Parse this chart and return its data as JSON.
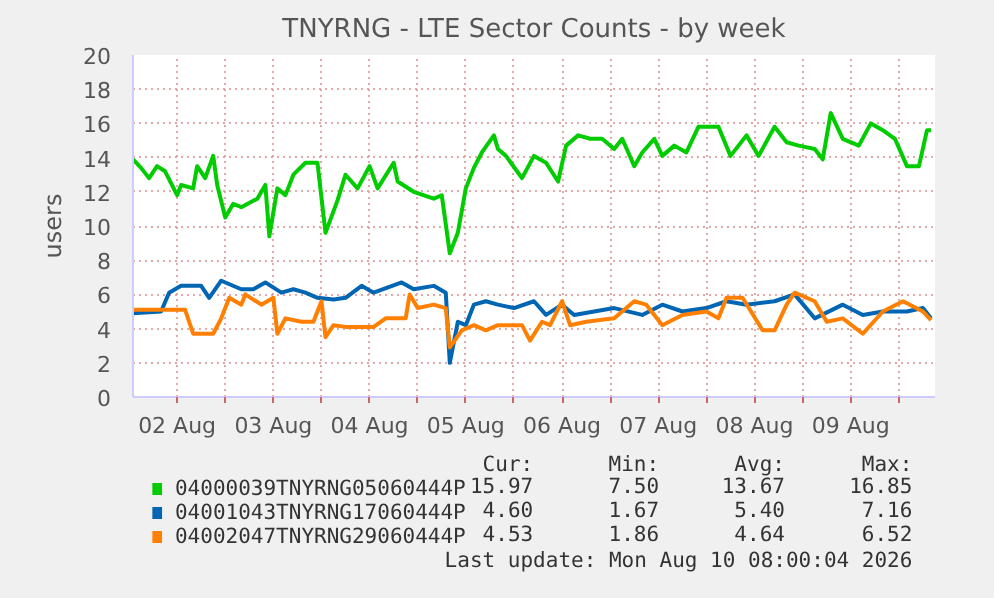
{
  "chart_data": {
    "type": "line",
    "title": "TNYRNG - LTE Sector Counts - by week",
    "ylabel": "users",
    "xlim": [
      "2026-08-02T01:00",
      "2026-08-10T09:00"
    ],
    "xticks": [
      {
        "value": "2026-08-02T12:00",
        "label": "02 Aug"
      },
      {
        "value": "2026-08-03T00:00",
        "label": null
      },
      {
        "value": "2026-08-03T12:00",
        "label": "03 Aug"
      },
      {
        "value": "2026-08-04T00:00",
        "label": null
      },
      {
        "value": "2026-08-04T12:00",
        "label": "04 Aug"
      },
      {
        "value": "2026-08-05T00:00",
        "label": null
      },
      {
        "value": "2026-08-05T12:00",
        "label": "05 Aug"
      },
      {
        "value": "2026-08-06T00:00",
        "label": null
      },
      {
        "value": "2026-08-06T12:00",
        "label": "06 Aug"
      },
      {
        "value": "2026-08-07T00:00",
        "label": null
      },
      {
        "value": "2026-08-07T12:00",
        "label": "07 Aug"
      },
      {
        "value": "2026-08-08T00:00",
        "label": null
      },
      {
        "value": "2026-08-08T12:00",
        "label": "08 Aug"
      },
      {
        "value": "2026-08-09T00:00",
        "label": null
      },
      {
        "value": "2026-08-09T12:00",
        "label": "09 Aug"
      },
      {
        "value": "2026-08-10T00:00",
        "label": null
      }
    ],
    "ylim": [
      0,
      20
    ],
    "yticks": [
      0,
      2,
      4,
      6,
      8,
      10,
      12,
      14,
      16,
      18,
      20
    ],
    "grid": true,
    "legend": "bottom",
    "series": [
      {
        "name": "04000039TNYRNG05060444P",
        "color": "#00cc00",
        "x": [
          "2026-08-02T01:00",
          "2026-08-02T03:00",
          "2026-08-02T05:00",
          "2026-08-02T07:00",
          "2026-08-02T09:00",
          "2026-08-02T12:00",
          "2026-08-02T13:00",
          "2026-08-02T16:00",
          "2026-08-02T17:00",
          "2026-08-02T19:00",
          "2026-08-02T21:00",
          "2026-08-02T22:00",
          "2026-08-03T00:00",
          "2026-08-03T02:00",
          "2026-08-03T04:00",
          "2026-08-03T08:00",
          "2026-08-03T10:00",
          "2026-08-03T11:00",
          "2026-08-03T13:00",
          "2026-08-03T15:00",
          "2026-08-03T17:00",
          "2026-08-03T20:00",
          "2026-08-03T23:00",
          "2026-08-04T01:00",
          "2026-08-04T04:00",
          "2026-08-04T06:00",
          "2026-08-04T09:00",
          "2026-08-04T12:00",
          "2026-08-04T14:00",
          "2026-08-04T18:00",
          "2026-08-04T19:00",
          "2026-08-04T23:00",
          "2026-08-05T04:00",
          "2026-08-05T06:00",
          "2026-08-05T08:00",
          "2026-08-05T10:00",
          "2026-08-05T12:00",
          "2026-08-05T14:00",
          "2026-08-05T16:00",
          "2026-08-05T19:00",
          "2026-08-05T20:00",
          "2026-08-05T22:00",
          "2026-08-06T02:00",
          "2026-08-06T05:00",
          "2026-08-06T08:00",
          "2026-08-06T11:00",
          "2026-08-06T13:00",
          "2026-08-06T16:00",
          "2026-08-06T19:00",
          "2026-08-06T22:00",
          "2026-08-07T01:00",
          "2026-08-07T03:00",
          "2026-08-07T06:00",
          "2026-08-07T08:00",
          "2026-08-07T11:00",
          "2026-08-07T13:00",
          "2026-08-07T16:00",
          "2026-08-07T19:00",
          "2026-08-07T22:00",
          "2026-08-08T03:00",
          "2026-08-08T06:00",
          "2026-08-08T10:00",
          "2026-08-08T13:00",
          "2026-08-08T17:00",
          "2026-08-08T20:00",
          "2026-08-08T23:00",
          "2026-08-09T03:00",
          "2026-08-09T05:00",
          "2026-08-09T07:00",
          "2026-08-09T10:00",
          "2026-08-09T14:00",
          "2026-08-09T17:00",
          "2026-08-09T20:00",
          "2026-08-09T23:00",
          "2026-08-10T02:00",
          "2026-08-10T05:00",
          "2026-08-10T07:00",
          "2026-08-10T08:00"
        ],
        "values": [
          13.9,
          13.4,
          12.8,
          13.5,
          13.2,
          11.8,
          12.4,
          12.2,
          13.5,
          12.8,
          14.1,
          12.4,
          10.5,
          11.3,
          11.1,
          11.6,
          12.4,
          9.4,
          12.2,
          11.8,
          13.0,
          13.7,
          13.7,
          9.6,
          11.5,
          13.0,
          12.2,
          13.5,
          12.2,
          13.7,
          12.6,
          12.0,
          11.6,
          11.8,
          8.4,
          9.6,
          12.2,
          13.4,
          14.3,
          15.3,
          14.5,
          14.1,
          12.8,
          14.1,
          13.7,
          12.6,
          14.7,
          15.3,
          15.1,
          15.1,
          14.5,
          15.1,
          13.5,
          14.3,
          15.1,
          14.1,
          14.7,
          14.3,
          15.8,
          15.8,
          14.1,
          15.3,
          14.1,
          15.8,
          14.9,
          14.7,
          14.5,
          13.9,
          16.6,
          15.1,
          14.7,
          16.0,
          15.6,
          15.1,
          13.5,
          13.5,
          15.6,
          15.6
        ]
      },
      {
        "name": "04001043TNYRNG17060444P",
        "color": "#0066b3",
        "x": [
          "2026-08-02T01:00",
          "2026-08-02T08:00",
          "2026-08-02T10:00",
          "2026-08-02T13:00",
          "2026-08-02T18:00",
          "2026-08-02T20:00",
          "2026-08-02T23:00",
          "2026-08-03T04:00",
          "2026-08-03T07:00",
          "2026-08-03T10:00",
          "2026-08-03T14:00",
          "2026-08-03T17:00",
          "2026-08-03T20:00",
          "2026-08-03T23:00",
          "2026-08-04T03:00",
          "2026-08-04T06:00",
          "2026-08-04T10:00",
          "2026-08-04T13:00",
          "2026-08-04T20:00",
          "2026-08-04T23:00",
          "2026-08-05T04:00",
          "2026-08-05T07:00",
          "2026-08-05T08:00",
          "2026-08-05T10:00",
          "2026-08-05T12:00",
          "2026-08-05T14:00",
          "2026-08-05T17:00",
          "2026-08-05T20:00",
          "2026-08-06T00:00",
          "2026-08-06T05:00",
          "2026-08-06T08:00",
          "2026-08-06T12:00",
          "2026-08-06T15:00",
          "2026-08-06T20:00",
          "2026-08-07T01:00",
          "2026-08-07T08:00",
          "2026-08-07T13:00",
          "2026-08-07T18:00",
          "2026-08-08T00:00",
          "2026-08-08T05:00",
          "2026-08-08T10:00",
          "2026-08-08T17:00",
          "2026-08-08T22:00",
          "2026-08-09T03:00",
          "2026-08-09T10:00",
          "2026-08-09T15:00",
          "2026-08-09T20:00",
          "2026-08-10T02:00",
          "2026-08-10T06:00",
          "2026-08-10T08:00"
        ],
        "values": [
          4.9,
          5.0,
          6.1,
          6.5,
          6.5,
          5.8,
          6.8,
          6.3,
          6.3,
          6.7,
          6.1,
          6.3,
          6.1,
          5.8,
          5.7,
          5.8,
          6.5,
          6.1,
          6.7,
          6.3,
          6.5,
          6.1,
          2.0,
          4.4,
          4.2,
          5.4,
          5.6,
          5.4,
          5.2,
          5.6,
          4.8,
          5.4,
          4.8,
          5.0,
          5.2,
          4.8,
          5.4,
          5.0,
          5.2,
          5.6,
          5.4,
          5.6,
          6.0,
          4.6,
          5.4,
          4.8,
          5.0,
          5.0,
          5.2,
          4.6
        ]
      },
      {
        "name": "04002047TNYRNG29060444P",
        "color": "#ff8000",
        "x": [
          "2026-08-02T01:00",
          "2026-08-02T14:00",
          "2026-08-02T16:00",
          "2026-08-02T21:00",
          "2026-08-02T23:00",
          "2026-08-03T01:00",
          "2026-08-03T04:00",
          "2026-08-03T05:00",
          "2026-08-03T09:00",
          "2026-08-03T12:00",
          "2026-08-03T13:00",
          "2026-08-03T15:00",
          "2026-08-03T19:00",
          "2026-08-03T22:00",
          "2026-08-04T00:00",
          "2026-08-04T01:00",
          "2026-08-04T03:00",
          "2026-08-04T06:00",
          "2026-08-04T13:00",
          "2026-08-04T16:00",
          "2026-08-04T21:00",
          "2026-08-04T22:00",
          "2026-08-05T00:00",
          "2026-08-05T04:00",
          "2026-08-05T07:00",
          "2026-08-05T08:00",
          "2026-08-05T11:00",
          "2026-08-05T14:00",
          "2026-08-05T17:00",
          "2026-08-05T20:00",
          "2026-08-06T02:00",
          "2026-08-06T04:00",
          "2026-08-06T07:00",
          "2026-08-06T09:00",
          "2026-08-06T12:00",
          "2026-08-06T14:00",
          "2026-08-06T18:00",
          "2026-08-07T01:00",
          "2026-08-07T06:00",
          "2026-08-07T09:00",
          "2026-08-07T13:00",
          "2026-08-07T18:00",
          "2026-08-08T00:00",
          "2026-08-08T03:00",
          "2026-08-08T05:00",
          "2026-08-08T09:00",
          "2026-08-08T14:00",
          "2026-08-08T17:00",
          "2026-08-08T20:00",
          "2026-08-08T22:00",
          "2026-08-09T03:00",
          "2026-08-09T06:00",
          "2026-08-09T10:00",
          "2026-08-09T15:00",
          "2026-08-09T20:00",
          "2026-08-10T01:00",
          "2026-08-10T06:00",
          "2026-08-10T08:00"
        ],
        "values": [
          5.1,
          5.1,
          3.7,
          3.7,
          4.6,
          5.8,
          5.4,
          6.0,
          5.4,
          5.8,
          3.7,
          4.6,
          4.4,
          4.4,
          5.6,
          3.5,
          4.2,
          4.1,
          4.1,
          4.6,
          4.6,
          6.0,
          5.2,
          5.4,
          5.2,
          2.9,
          3.9,
          4.2,
          3.9,
          4.2,
          4.2,
          3.3,
          4.4,
          4.2,
          5.6,
          4.2,
          4.4,
          4.6,
          5.6,
          5.4,
          4.2,
          4.8,
          5.0,
          4.6,
          5.8,
          5.8,
          3.9,
          3.9,
          5.4,
          6.1,
          5.6,
          4.4,
          4.6,
          3.7,
          5.0,
          5.6,
          5.0,
          4.5
        ]
      }
    ],
    "annotations": [
      "Cur:",
      "Min:",
      "Avg:",
      "Max:",
      "15.97",
      "7.50",
      "13.67",
      "16.85",
      "4.60",
      "1.67",
      "5.40",
      "7.16",
      "4.53",
      "1.86",
      "4.64",
      "6.52",
      "Last update: Mon Aug 10 08:00:04 2026"
    ]
  }
}
